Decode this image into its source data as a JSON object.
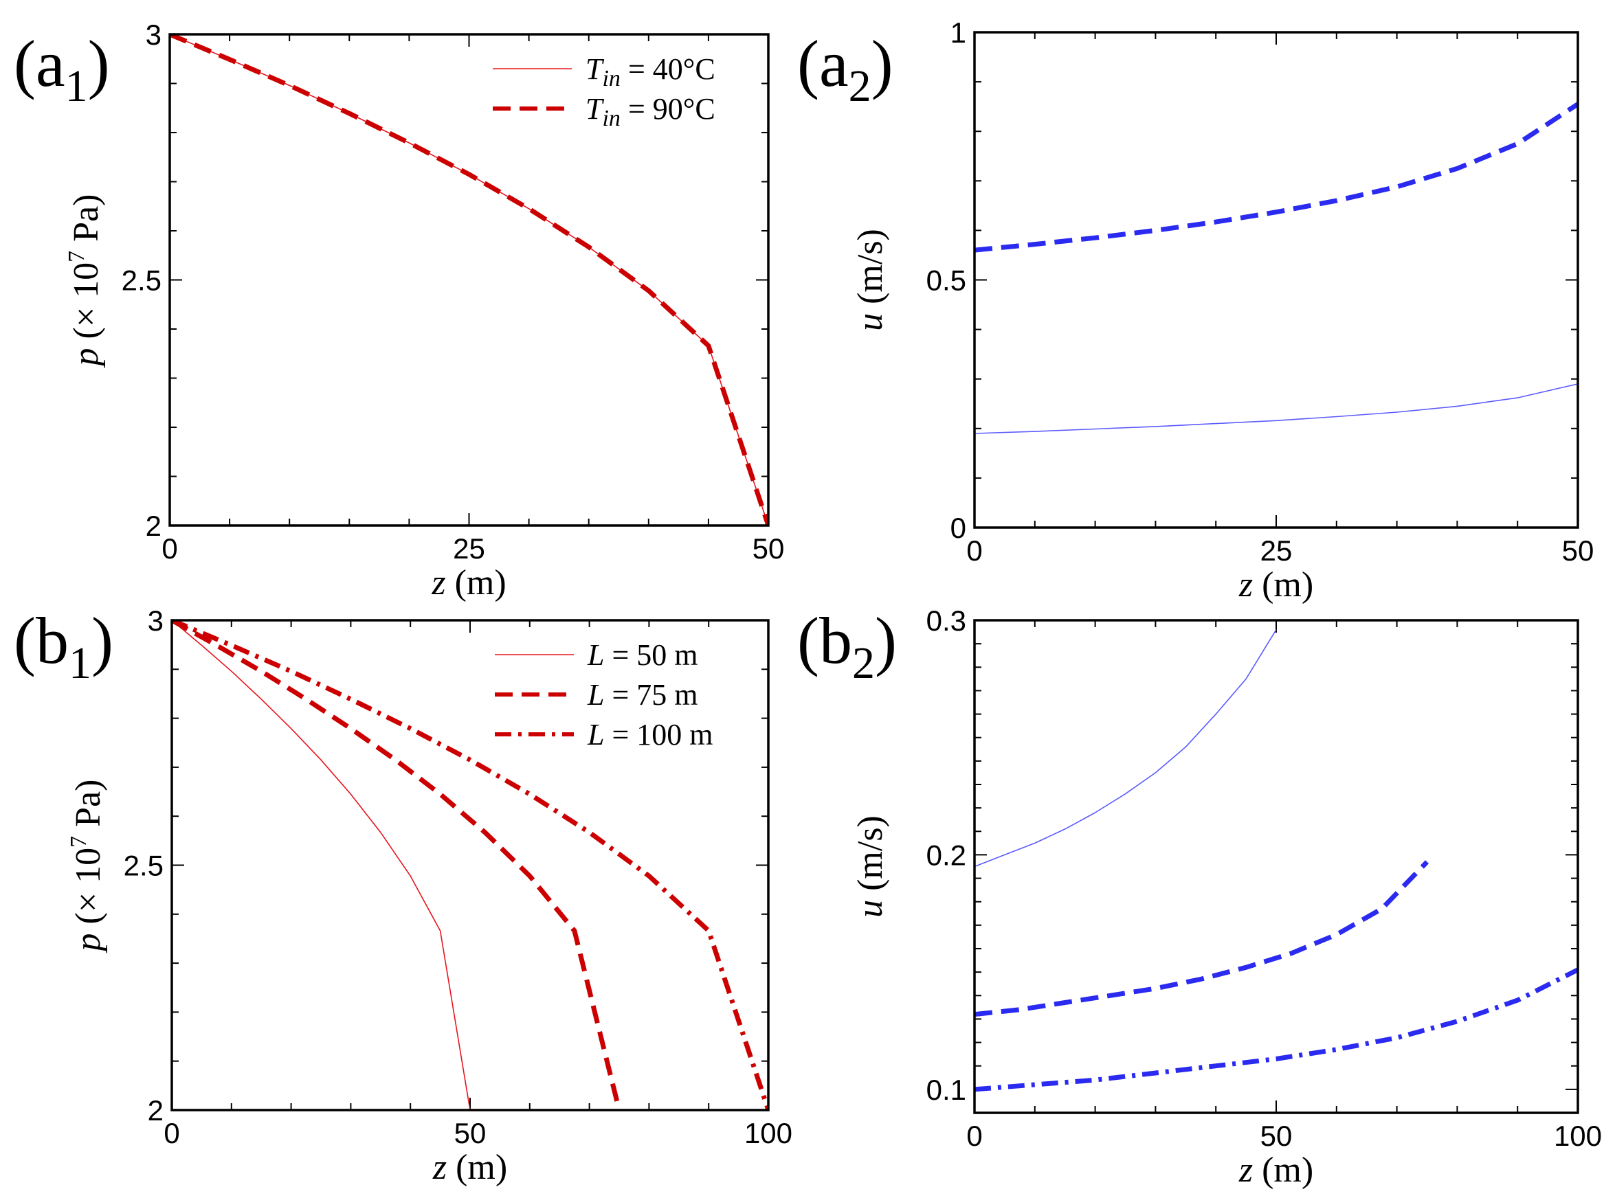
{
  "figure": {
    "panels": [
      {
        "label_main": "(a",
        "label_sub": "1",
        "label_close": ")"
      },
      {
        "label_main": "(a",
        "label_sub": "2",
        "label_close": ")"
      },
      {
        "label_main": "(b",
        "label_sub": "1",
        "label_close": ")"
      },
      {
        "label_main": "(b",
        "label_sub": "2",
        "label_close": ")"
      }
    ]
  },
  "chart_data": [
    {
      "type": "line",
      "panel": "a1",
      "xlabel_var": "z",
      "xlabel_unit": " (m)",
      "ylabel_var": "p",
      "ylabel_unit": " (× 10",
      "ylabel_exp": "7",
      "ylabel_tail": " Pa)",
      "xlim": [
        0,
        50
      ],
      "ylim": [
        2,
        3
      ],
      "xticks": [
        0,
        25,
        50
      ],
      "xtick_labels": [
        "0",
        "25",
        "50"
      ],
      "yticks": [
        2,
        2.5,
        3
      ],
      "ytick_labels": [
        "2",
        "2.5",
        "3"
      ],
      "x_minor": 5,
      "y_minor": 0.1,
      "legend": "top-right",
      "series": [
        {
          "name": "T_in = 40°C",
          "legend_var": "T",
          "legend_sub": "in",
          "legend_val": " = 40°C",
          "color": "#e8141c",
          "style": "solid",
          "width": 1.6,
          "x": [
            0,
            5,
            10,
            15,
            20,
            25,
            30,
            35,
            40,
            45,
            50
          ],
          "y": [
            3.0,
            2.949,
            2.896,
            2.839,
            2.779,
            2.715,
            2.645,
            2.567,
            2.478,
            2.366,
            2.0
          ]
        },
        {
          "name": "T_in = 90°C",
          "legend_var": "T",
          "legend_sub": "in",
          "legend_val": " = 90°C",
          "color": "#cc0000",
          "style": "dash",
          "width": 7,
          "x": [
            0,
            5,
            10,
            15,
            20,
            25,
            30,
            35,
            40,
            45,
            50
          ],
          "y": [
            3.0,
            2.949,
            2.896,
            2.839,
            2.779,
            2.715,
            2.645,
            2.567,
            2.478,
            2.366,
            2.0
          ]
        }
      ]
    },
    {
      "type": "line",
      "panel": "a2",
      "xlabel_var": "z",
      "xlabel_unit": " (m)",
      "ylabel_var": "u",
      "ylabel_unit": " (m/s)",
      "xlim": [
        0,
        50
      ],
      "ylim": [
        0,
        1
      ],
      "xticks": [
        0,
        25,
        50
      ],
      "xtick_labels": [
        "0",
        "25",
        "50"
      ],
      "yticks": [
        0,
        0.5,
        1
      ],
      "ytick_labels": [
        "0",
        "0.5",
        "1"
      ],
      "x_minor": 5,
      "y_minor": 0.1,
      "series": [
        {
          "name": "T_in = 40°C",
          "color": "#5b5bff",
          "style": "solid",
          "width": 1.6,
          "x": [
            0,
            5,
            10,
            15,
            20,
            25,
            30,
            35,
            40,
            45,
            50
          ],
          "y": [
            0.19,
            0.194,
            0.199,
            0.204,
            0.21,
            0.216,
            0.224,
            0.233,
            0.245,
            0.262,
            0.29
          ]
        },
        {
          "name": "T_in = 90°C",
          "color": "#2a2af0",
          "style": "dash",
          "width": 7,
          "x": [
            0,
            5,
            10,
            15,
            20,
            25,
            30,
            35,
            40,
            45,
            50
          ],
          "y": [
            0.56,
            0.572,
            0.585,
            0.6,
            0.617,
            0.637,
            0.66,
            0.688,
            0.725,
            0.775,
            0.855
          ]
        }
      ]
    },
    {
      "type": "line",
      "panel": "b1",
      "xlabel_var": "z",
      "xlabel_unit": " (m)",
      "ylabel_var": "p",
      "ylabel_unit": " (× 10",
      "ylabel_exp": "7",
      "ylabel_tail": " Pa)",
      "xlim": [
        0,
        100
      ],
      "ylim": [
        2,
        3
      ],
      "xticks": [
        0,
        50,
        100
      ],
      "xtick_labels": [
        "0",
        "50",
        "100"
      ],
      "yticks": [
        2,
        2.5,
        3
      ],
      "ytick_labels": [
        "2",
        "2.5",
        "3"
      ],
      "x_minor": 10,
      "y_minor": 0.1,
      "legend": "top-right",
      "series": [
        {
          "name": "L = 50 m",
          "legend_var": "L",
          "legend_sub": "",
          "legend_val": " = 50 m",
          "color": "#e8141c",
          "style": "solid",
          "width": 1.6,
          "x": [
            0,
            5,
            10,
            15,
            20,
            25,
            30,
            35,
            40,
            45,
            50
          ],
          "y": [
            3.0,
            2.949,
            2.896,
            2.839,
            2.779,
            2.715,
            2.645,
            2.567,
            2.478,
            2.366,
            2.0
          ]
        },
        {
          "name": "L = 75 m",
          "legend_var": "L",
          "legend_sub": "",
          "legend_val": " = 75 m",
          "color": "#cc0000",
          "style": "dash",
          "width": 7,
          "x": [
            0,
            7.5,
            15,
            22.5,
            30,
            37.5,
            45,
            52.5,
            60,
            67.5,
            75
          ],
          "y": [
            3.0,
            2.949,
            2.896,
            2.839,
            2.779,
            2.715,
            2.645,
            2.567,
            2.478,
            2.366,
            2.0
          ]
        },
        {
          "name": "L = 100 m",
          "legend_var": "L",
          "legend_sub": "",
          "legend_val": " = 100 m",
          "color": "#cc0000",
          "style": "dashdot",
          "width": 7,
          "x": [
            0,
            10,
            20,
            30,
            40,
            50,
            60,
            70,
            80,
            90,
            100
          ],
          "y": [
            3.0,
            2.949,
            2.896,
            2.839,
            2.779,
            2.715,
            2.645,
            2.567,
            2.478,
            2.366,
            2.0
          ]
        }
      ]
    },
    {
      "type": "line",
      "panel": "b2",
      "xlabel_var": "z",
      "xlabel_unit": " (m)",
      "ylabel_var": "u",
      "ylabel_unit": " (m/s)",
      "xlim": [
        0,
        100
      ],
      "ylim": [
        0.09,
        0.3
      ],
      "xticks": [
        0,
        50,
        100
      ],
      "xtick_labels": [
        "0",
        "50",
        "100"
      ],
      "yticks": [
        0.1,
        0.2,
        0.3
      ],
      "ytick_labels": [
        "0.1",
        "0.2",
        "0.3"
      ],
      "x_minor": 10,
      "y_minor": 0.01,
      "series": [
        {
          "name": "L = 50 m",
          "color": "#5b5bff",
          "style": "solid",
          "width": 1.6,
          "x": [
            0,
            5,
            10,
            15,
            20,
            25,
            30,
            35,
            40,
            45,
            50
          ],
          "y": [
            0.195,
            0.2,
            0.205,
            0.211,
            0.218,
            0.226,
            0.235,
            0.246,
            0.26,
            0.275,
            0.296
          ]
        },
        {
          "name": "L = 75 m",
          "color": "#2a2af0",
          "style": "dash",
          "width": 7,
          "x": [
            0,
            7.5,
            15,
            22.5,
            30,
            37.5,
            45,
            52.5,
            60,
            67.5,
            75
          ],
          "y": [
            0.132,
            0.134,
            0.137,
            0.14,
            0.143,
            0.147,
            0.152,
            0.158,
            0.166,
            0.177,
            0.197
          ]
        },
        {
          "name": "L = 100 m",
          "color": "#2a2af0",
          "style": "dashdot",
          "width": 7,
          "x": [
            0,
            10,
            20,
            30,
            40,
            50,
            60,
            70,
            80,
            90,
            100
          ],
          "y": [
            0.1,
            0.102,
            0.104,
            0.107,
            0.11,
            0.113,
            0.117,
            0.122,
            0.129,
            0.138,
            0.151
          ]
        }
      ]
    }
  ]
}
